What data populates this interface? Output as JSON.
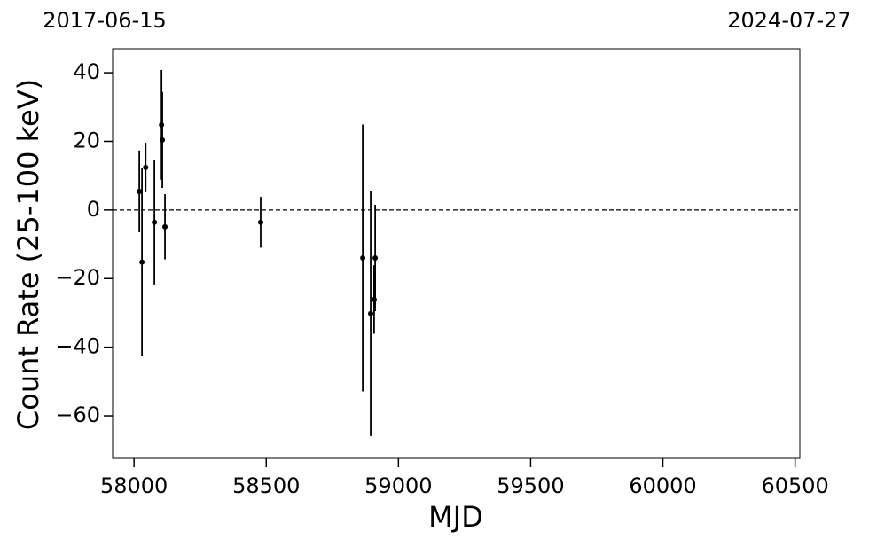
{
  "chart_data": {
    "type": "errorbar",
    "xlabel": "MJD",
    "ylabel": "Count Rate (25-100 keV)",
    "date_labels": [
      "2017-06-15",
      "2024-07-27"
    ],
    "x": [
      58020,
      58030,
      58044,
      58077,
      58104,
      58107,
      58117,
      58479,
      58865,
      58895,
      58908,
      58912
    ],
    "values": [
      5.4,
      -15.2,
      12.4,
      -3.6,
      24.8,
      20.4,
      -4.9,
      -3.6,
      -14,
      -30.2,
      -26.1,
      -14
    ],
    "errors": [
      11.9,
      27.3,
      7.2,
      18.1,
      16,
      14,
      9.5,
      7.4,
      38.9,
      35.7,
      10,
      15.5
    ],
    "color": "#000000",
    "hline": 0,
    "xlim": [
      57919,
      60518
    ],
    "ylim": [
      -72.4,
      47
    ],
    "xticks": [
      58000,
      58500,
      59000,
      59500,
      60000,
      60500
    ],
    "yticks": [
      {
        "value": -60,
        "label": "−60"
      },
      {
        "value": -40,
        "label": "−40"
      },
      {
        "value": -20,
        "label": "−20"
      },
      0,
      20,
      40
    ]
  }
}
